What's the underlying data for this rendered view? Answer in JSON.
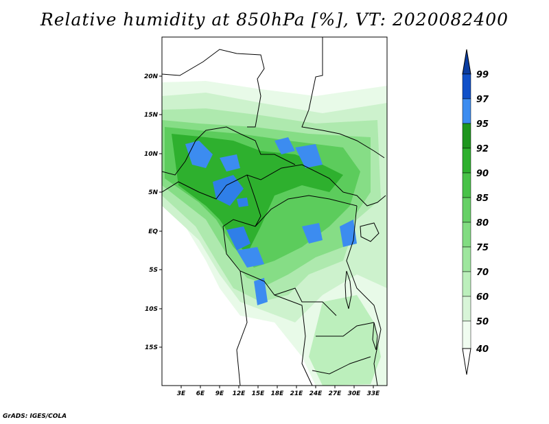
{
  "title": "Relative humidity at 850hPa [%], VT: 2020082400",
  "credit": "GrADS: IGES/COLA",
  "map": {
    "lat_labels": [
      "20N",
      "15N",
      "10N",
      "5N",
      "EQ",
      "5S",
      "10S",
      "15S"
    ],
    "lon_labels": [
      "3E",
      "6E",
      "9E",
      "12E",
      "15E",
      "18E",
      "21E",
      "24E",
      "27E",
      "30E",
      "33E"
    ]
  },
  "colorbar": {
    "levels": [
      "40",
      "50",
      "60",
      "70",
      "75",
      "80",
      "85",
      "90",
      "92",
      "95",
      "97",
      "99"
    ],
    "colors": [
      "#f0fcf0",
      "#d8f5d8",
      "#bcefbc",
      "#9ee69e",
      "#82dc82",
      "#66d066",
      "#48c248",
      "#2eb02e",
      "#1e961e",
      "#50a0ff",
      "#2878e6",
      "#1050c8",
      "#0a3ca0"
    ]
  },
  "colors": {
    "border": "#000000",
    "background": "#ffffff"
  }
}
